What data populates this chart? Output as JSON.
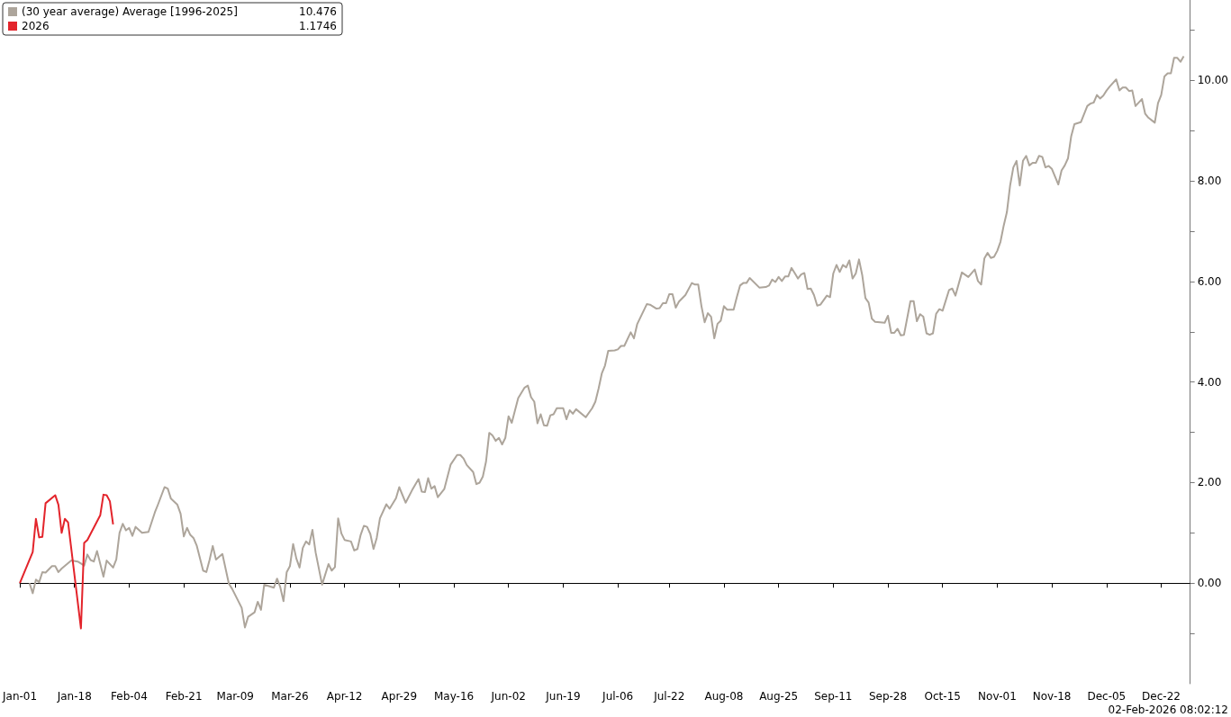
{
  "chart_data": {
    "type": "line",
    "legend": "top left",
    "annotations": [
      "10.476",
      "1.1746",
      "02-Feb-2026 08:02:12"
    ],
    "xlim": [
      "--01-01",
      "--12-31"
    ],
    "xticks": [
      {
        "value": "--01-01",
        "label": "Jan-01"
      },
      {
        "value": "--01-18",
        "label": "Jan-18"
      },
      {
        "value": "--02-04",
        "label": "Feb-04"
      },
      {
        "value": "--02-21",
        "label": "Feb-21"
      },
      {
        "value": "--03-09",
        "label": "Mar-09"
      },
      {
        "value": "--03-26",
        "label": "Mar-26"
      },
      {
        "value": "--04-12",
        "label": "Apr-12"
      },
      {
        "value": "--04-29",
        "label": "Apr-29"
      },
      {
        "value": "--05-16",
        "label": "May-16"
      },
      {
        "value": "--06-02",
        "label": "Jun-02"
      },
      {
        "value": "--06-19",
        "label": "Jun-19"
      },
      {
        "value": "--07-06",
        "label": "Jul-06"
      },
      {
        "value": "--07-22",
        "label": "Jul-22"
      },
      {
        "value": "--08-08",
        "label": "Aug-08"
      },
      {
        "value": "--08-25",
        "label": "Aug-25"
      },
      {
        "value": "--09-11",
        "label": "Sep-11"
      },
      {
        "value": "--09-28",
        "label": "Sep-28"
      },
      {
        "value": "--10-15",
        "label": "Oct-15"
      },
      {
        "value": "--11-01",
        "label": "Nov-01"
      },
      {
        "value": "--11-18",
        "label": "Nov-18"
      },
      {
        "value": "--12-05",
        "label": "Dec-05"
      },
      {
        "value": "--12-22",
        "label": "Dec-22"
      }
    ],
    "ylim": [
      -2,
      11.6
    ],
    "yticks": [
      {
        "value": -1,
        "label": null
      },
      {
        "value": 0,
        "label": "0.00"
      },
      {
        "value": 1,
        "label": null
      },
      {
        "value": 2,
        "label": "2.00"
      },
      {
        "value": 3,
        "label": null
      },
      {
        "value": 4,
        "label": "4.00"
      },
      {
        "value": 5,
        "label": null
      },
      {
        "value": 6,
        "label": "6.00"
      },
      {
        "value": 7,
        "label": null
      },
      {
        "value": 8,
        "label": "8.00"
      },
      {
        "value": 9,
        "label": null
      },
      {
        "value": 10,
        "label": "10.00"
      },
      {
        "value": 11,
        "label": null
      }
    ],
    "series": [
      {
        "name": "(30 year average) Average [1996-2025]",
        "color": "#ada59b",
        "x": [
          "--01-04",
          "--01-05",
          "--01-06",
          "--01-07",
          "--01-08",
          "--01-09",
          "--01-11",
          "--01-12",
          "--01-13",
          "--01-14",
          "--01-17",
          "--01-19",
          "--01-21",
          "--01-22",
          "--01-23",
          "--01-24",
          "--01-25",
          "--01-27",
          "--01-28",
          "--01-30",
          "--01-31",
          "--02-01",
          "--02-02",
          "--02-03",
          "--02-04",
          "--02-05",
          "--02-06",
          "--02-08",
          "--02-10",
          "--02-12",
          "--02-13",
          "--02-15",
          "--02-16",
          "--02-17",
          "--02-19",
          "--02-20",
          "--02-21",
          "--02-22",
          "--02-23",
          "--02-24",
          "--02-25",
          "--02-27",
          "--02-28",
          "--03-01",
          "--03-02",
          "--03-03",
          "--03-05",
          "--03-07",
          "--03-08",
          "--03-11",
          "--03-12",
          "--03-13",
          "--03-15",
          "--03-16",
          "--03-17",
          "--03-18",
          "--03-19",
          "--03-21",
          "--03-22",
          "--03-23",
          "--03-24",
          "--03-25",
          "--03-26",
          "--03-27",
          "--03-28",
          "--03-29",
          "--03-30",
          "--03-31",
          "--04-01",
          "--04-02",
          "--04-03",
          "--04-05",
          "--04-07",
          "--04-08",
          "--04-09",
          "--04-10",
          "--04-11",
          "--04-12",
          "--04-14",
          "--04-15",
          "--04-16",
          "--04-17",
          "--04-18",
          "--04-19",
          "--04-20",
          "--04-21",
          "--04-22",
          "--04-23",
          "--04-25",
          "--04-26",
          "--04-28",
          "--04-29",
          "--05-01",
          "--05-03",
          "--05-05",
          "--05-06",
          "--05-07",
          "--05-08",
          "--05-09",
          "--05-10",
          "--05-11",
          "--05-13",
          "--05-15",
          "--05-17",
          "--05-18",
          "--05-19",
          "--05-20",
          "--05-22",
          "--05-23",
          "--05-24",
          "--05-25",
          "--05-26",
          "--05-27",
          "--05-28",
          "--05-29",
          "--05-30",
          "--05-31",
          "--06-01",
          "--06-02",
          "--06-03",
          "--06-05",
          "--06-07",
          "--06-08",
          "--06-09",
          "--06-10",
          "--06-11",
          "--06-12",
          "--06-13",
          "--06-14",
          "--06-15",
          "--06-16",
          "--06-17",
          "--06-19",
          "--06-20",
          "--06-21",
          "--06-22",
          "--06-23",
          "--06-26",
          "--06-28",
          "--06-29",
          "--06-30",
          "--07-01",
          "--07-02",
          "--07-03",
          "--07-05",
          "--07-06",
          "--07-07",
          "--07-08",
          "--07-10",
          "--07-11",
          "--07-12",
          "--07-15",
          "--07-16",
          "--07-18",
          "--07-19",
          "--07-20",
          "--07-21",
          "--07-22",
          "--07-23",
          "--07-24",
          "--07-25",
          "--07-27",
          "--07-29",
          "--07-30",
          "--07-31",
          "--08-01",
          "--08-02",
          "--08-03",
          "--08-04",
          "--08-05",
          "--08-06",
          "--08-07",
          "--08-08",
          "--08-09",
          "--08-11",
          "--08-12",
          "--08-13",
          "--08-14",
          "--08-15",
          "--08-16",
          "--08-19",
          "--08-21",
          "--08-22",
          "--08-23",
          "--08-24",
          "--08-25",
          "--08-26",
          "--08-27",
          "--08-28",
          "--08-29",
          "--08-30",
          "--08-31",
          "--09-01",
          "--09-02",
          "--09-03",
          "--09-04",
          "--09-05",
          "--09-06",
          "--09-07",
          "--09-09",
          "--09-10",
          "--09-11",
          "--09-12",
          "--09-13",
          "--09-14",
          "--09-15",
          "--09-16",
          "--09-17",
          "--09-18",
          "--09-19",
          "--09-20",
          "--09-21",
          "--09-22",
          "--09-23",
          "--09-24",
          "--09-27",
          "--09-28",
          "--09-29",
          "--09-30",
          "--10-01",
          "--10-02",
          "--10-03",
          "--10-05",
          "--10-06",
          "--10-07",
          "--10-08",
          "--10-09",
          "--10-10",
          "--10-11",
          "--10-12",
          "--10-13",
          "--10-14",
          "--10-15",
          "--10-17",
          "--10-18",
          "--10-19",
          "--10-21",
          "--10-23",
          "--10-25",
          "--10-26",
          "--10-27",
          "--10-28",
          "--10-29",
          "--10-30",
          "--10-31",
          "--11-01",
          "--11-02",
          "--11-03",
          "--11-04",
          "--11-05",
          "--11-06",
          "--11-07",
          "--11-08",
          "--11-09",
          "--11-10",
          "--11-11",
          "--11-12",
          "--11-13",
          "--11-14",
          "--11-15",
          "--11-16",
          "--11-17",
          "--11-18",
          "--11-20",
          "--11-21",
          "--11-22",
          "--11-23",
          "--11-24",
          "--11-25",
          "--11-27",
          "--11-29",
          "--11-30",
          "--12-01",
          "--12-02",
          "--12-03",
          "--12-04",
          "--12-05",
          "--12-06",
          "--12-08",
          "--12-09",
          "--12-10",
          "--12-11",
          "--12-12",
          "--12-13",
          "--12-14",
          "--12-16",
          "--12-17",
          "--12-18",
          "--12-20",
          "--12-21",
          "--12-22",
          "--12-23",
          "--12-24",
          "--12-25",
          "--12-26",
          "--12-27",
          "--12-28",
          "--12-29"
        ],
        "values": [
          0,
          -0.2,
          0.07,
          0.02,
          0.22,
          0.21,
          0.34,
          0.34,
          0.22,
          0.29,
          0.45,
          0.43,
          0.35,
          0.57,
          0.46,
          0.43,
          0.64,
          0.13,
          0.45,
          0.31,
          0.47,
          1.0,
          1.18,
          1.05,
          1.1,
          0.94,
          1.12,
          1.0,
          1.02,
          1.41,
          1.57,
          1.91,
          1.88,
          1.68,
          1.56,
          1.38,
          0.93,
          1.1,
          0.96,
          0.9,
          0.75,
          0.25,
          0.22,
          0.46,
          0.74,
          0.47,
          0.58,
          -0.01,
          -0.11,
          -0.49,
          -0.88,
          -0.67,
          -0.58,
          -0.37,
          -0.53,
          -0.03,
          -0.05,
          -0.09,
          0.09,
          -0.08,
          -0.36,
          0.22,
          0.34,
          0.78,
          0.49,
          0.31,
          0.7,
          0.83,
          0.77,
          1.06,
          0.61,
          -0.03,
          0.38,
          0.25,
          0.32,
          1.29,
          0.99,
          0.86,
          0.83,
          0.65,
          0.68,
          0.96,
          1.14,
          1.12,
          0.98,
          0.68,
          0.9,
          1.29,
          1.57,
          1.48,
          1.69,
          1.91,
          1.6,
          1.85,
          2.07,
          1.82,
          1.81,
          2.09,
          1.88,
          1.93,
          1.71,
          1.87,
          2.36,
          2.55,
          2.55,
          2.48,
          2.35,
          2.21,
          1.97,
          2.0,
          2.12,
          2.42,
          2.99,
          2.94,
          2.83,
          2.89,
          2.76,
          2.89,
          3.32,
          3.19,
          3.68,
          3.89,
          3.93,
          3.7,
          3.61,
          3.18,
          3.36,
          3.14,
          3.13,
          3.34,
          3.36,
          3.48,
          3.48,
          3.26,
          3.44,
          3.37,
          3.46,
          3.3,
          3.48,
          3.61,
          3.87,
          4.17,
          4.33,
          4.62,
          4.63,
          4.65,
          4.72,
          4.72,
          4.99,
          4.87,
          5.15,
          5.55,
          5.54,
          5.46,
          5.47,
          5.57,
          5.57,
          5.75,
          5.75,
          5.48,
          5.6,
          5.73,
          5.97,
          5.94,
          5.94,
          5.51,
          5.19,
          5.37,
          5.3,
          4.87,
          5.16,
          5.22,
          5.51,
          5.44,
          5.44,
          5.69,
          5.92,
          5.97,
          5.97,
          6.07,
          5.88,
          5.89,
          5.92,
          6.04,
          5.99,
          6.09,
          6.01,
          6.1,
          6.1,
          6.27,
          6.17,
          6.06,
          6.14,
          6.17,
          5.85,
          5.86,
          5.73,
          5.52,
          5.54,
          5.72,
          5.69,
          6.16,
          6.33,
          6.19,
          6.33,
          6.28,
          6.42,
          6.06,
          6.16,
          6.44,
          6.13,
          5.67,
          5.58,
          5.26,
          5.2,
          5.18,
          5.32,
          4.98,
          4.98,
          5.06,
          4.93,
          4.94,
          5.61,
          5.61,
          5.21,
          5.35,
          5.3,
          4.97,
          4.94,
          4.97,
          5.36,
          5.45,
          5.42,
          5.83,
          5.86,
          5.72,
          6.18,
          6.09,
          6.24,
          6.01,
          5.94,
          6.46,
          6.57,
          6.47,
          6.49,
          6.61,
          6.79,
          7.11,
          7.38,
          7.91,
          8.27,
          8.4,
          7.91,
          8.4,
          8.5,
          8.31,
          8.36,
          8.36,
          8.5,
          8.48,
          8.27,
          8.3,
          8.24,
          7.93,
          8.21,
          8.31,
          8.45,
          8.89,
          9.13,
          9.17,
          9.49,
          9.54,
          9.56,
          9.71,
          9.64,
          9.7,
          9.8,
          9.88,
          10.02,
          9.8,
          9.86,
          9.86,
          9.79,
          9.8,
          9.49,
          9.63,
          9.34,
          9.26,
          9.16,
          9.55,
          9.71,
          10.08,
          10.14,
          10.14,
          10.45,
          10.45,
          10.37,
          10.48
        ]
      },
      {
        "name": "2026",
        "color": "#e3242b",
        "x": [
          "--01-01",
          "--01-05",
          "--01-06",
          "--01-07",
          "--01-08",
          "--01-09",
          "--01-12",
          "--01-13",
          "--01-14",
          "--01-15",
          "--01-16",
          "--01-20",
          "--01-21",
          "--01-22",
          "--01-26",
          "--01-27",
          "--01-28",
          "--01-29",
          "--01-30"
        ],
        "values": [
          0,
          0.62,
          1.28,
          0.91,
          0.92,
          1.59,
          1.75,
          1.56,
          1.0,
          1.28,
          1.21,
          -0.9,
          0.8,
          0.86,
          1.35,
          1.76,
          1.75,
          1.63,
          1.17
        ]
      }
    ]
  }
}
